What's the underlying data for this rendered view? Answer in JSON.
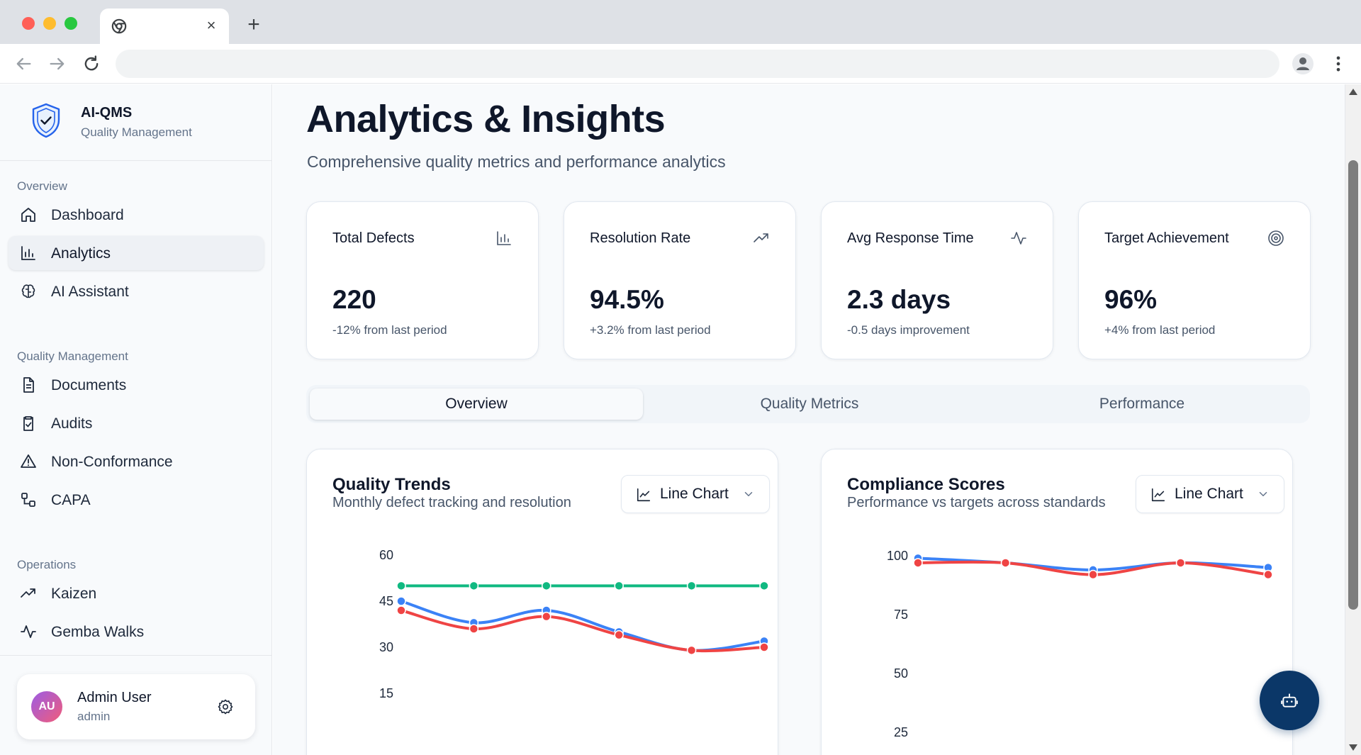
{
  "browser": {
    "tab_close_glyph": "×",
    "new_tab_glyph": "+"
  },
  "sidebar": {
    "brand_name": "AI-QMS",
    "brand_subtitle": "Quality Management",
    "sections": [
      {
        "label": "Overview",
        "items": [
          {
            "label": "Dashboard",
            "icon": "home-icon",
            "active": false
          },
          {
            "label": "Analytics",
            "icon": "bar-chart-icon",
            "active": true
          },
          {
            "label": "AI Assistant",
            "icon": "brain-icon",
            "active": false
          }
        ]
      },
      {
        "label": "Quality Management",
        "items": [
          {
            "label": "Documents",
            "icon": "document-icon",
            "active": false
          },
          {
            "label": "Audits",
            "icon": "clipboard-check-icon",
            "active": false
          },
          {
            "label": "Non-Conformance",
            "icon": "warning-triangle-icon",
            "active": false
          },
          {
            "label": "CAPA",
            "icon": "workflow-icon",
            "active": false
          }
        ]
      },
      {
        "label": "Operations",
        "items": [
          {
            "label": "Kaizen",
            "icon": "trending-up-icon",
            "active": false
          },
          {
            "label": "Gemba Walks",
            "icon": "activity-icon",
            "active": false
          }
        ]
      }
    ],
    "user": {
      "initials": "AU",
      "name": "Admin User",
      "role": "admin"
    }
  },
  "header": {
    "title": "Analytics & Insights",
    "subtitle": "Comprehensive quality metrics and performance analytics"
  },
  "kpis": [
    {
      "title": "Total Defects",
      "value": "220",
      "change": "-12% from last period",
      "icon": "bar-chart-icon"
    },
    {
      "title": "Resolution Rate",
      "value": "94.5%",
      "change": "+3.2% from last period",
      "icon": "trending-up-icon"
    },
    {
      "title": "Avg Response Time",
      "value": "2.3 days",
      "change": "-0.5 days improvement",
      "icon": "activity-icon"
    },
    {
      "title": "Target Achievement",
      "value": "96%",
      "change": "+4% from last period",
      "icon": "target-icon"
    }
  ],
  "tabs": [
    {
      "label": "Overview",
      "active": true
    },
    {
      "label": "Quality Metrics",
      "active": false
    },
    {
      "label": "Performance",
      "active": false
    }
  ],
  "colors": {
    "blue": "#3b82f6",
    "red": "#ef4444",
    "green": "#10b981",
    "fab": "#0b3768"
  },
  "chart_data": [
    {
      "type": "line",
      "title": "Quality Trends",
      "subtitle": "Monthly defect tracking and resolution",
      "select_label": "Line Chart",
      "x": [
        1,
        2,
        3,
        4,
        5,
        6
      ],
      "yticks": [
        60,
        45,
        30,
        15
      ],
      "ylim": [
        0,
        60
      ],
      "series": [
        {
          "values": [
            50,
            50,
            50,
            50,
            50,
            50
          ],
          "color": "#10b981"
        },
        {
          "values": [
            45,
            38,
            42,
            35,
            29,
            32
          ],
          "color": "#3b82f6"
        },
        {
          "values": [
            42,
            36,
            40,
            34,
            29,
            30
          ],
          "color": "#ef4444"
        }
      ]
    },
    {
      "type": "line",
      "title": "Compliance Scores",
      "subtitle": "Performance vs targets across standards",
      "select_label": "Line Chart",
      "x": [
        1,
        2,
        3,
        4,
        5
      ],
      "yticks": [
        100,
        75,
        50,
        25
      ],
      "ylim": [
        0,
        100
      ],
      "series": [
        {
          "values": [
            99,
            97,
            94,
            97,
            95
          ],
          "color": "#3b82f6"
        },
        {
          "values": [
            97,
            97,
            92,
            97,
            92
          ],
          "color": "#ef4444"
        }
      ]
    }
  ]
}
